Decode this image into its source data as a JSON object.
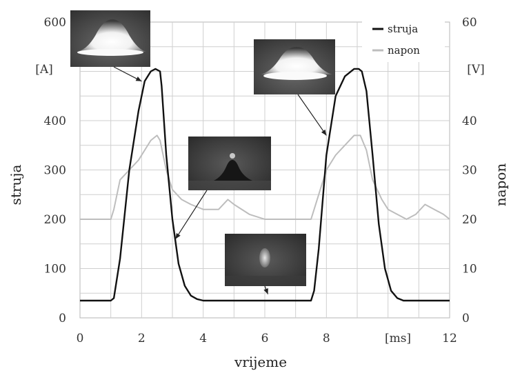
{
  "chart_data": {
    "type": "line",
    "xlabel": "vrijeme",
    "ylabel_left": "struja",
    "ylabel_right": "napon",
    "x_unit_label": "[ms]",
    "left_unit_label": "[A]",
    "right_unit_label": "[V]",
    "x_ticks": [
      0,
      2,
      4,
      6,
      8,
      12
    ],
    "left_ticks": [
      0,
      100,
      200,
      300,
      400,
      600
    ],
    "right_ticks": [
      0,
      10,
      20,
      30,
      40,
      60
    ],
    "xlim": [
      0,
      12
    ],
    "ylim_left": [
      0,
      600
    ],
    "ylim_right": [
      0,
      60
    ],
    "grid": true,
    "legend_position": "top-right",
    "series": [
      {
        "name": "struja",
        "axis": "left",
        "color": "#111111",
        "x": [
          0,
          1.0,
          1.1,
          1.3,
          1.6,
          1.9,
          2.1,
          2.3,
          2.45,
          2.6,
          2.65,
          2.8,
          3.0,
          3.2,
          3.4,
          3.6,
          3.8,
          4.0,
          5.0,
          6.0,
          7.0,
          7.5,
          7.6,
          7.75,
          8.0,
          8.3,
          8.6,
          8.9,
          9.05,
          9.15,
          9.3,
          9.5,
          9.7,
          9.9,
          10.1,
          10.3,
          10.5,
          11.0,
          12.0
        ],
        "values": [
          35,
          35,
          40,
          120,
          300,
          420,
          480,
          500,
          505,
          500,
          470,
          330,
          200,
          110,
          65,
          45,
          38,
          35,
          35,
          35,
          35,
          35,
          55,
          140,
          330,
          450,
          490,
          505,
          505,
          500,
          460,
          330,
          190,
          100,
          55,
          40,
          35,
          35,
          35
        ]
      },
      {
        "name": "napon",
        "axis": "right",
        "color": "#bdbdbd",
        "x": [
          0,
          0.5,
          1.0,
          1.1,
          1.3,
          1.6,
          1.9,
          2.1,
          2.3,
          2.5,
          2.6,
          2.8,
          3.0,
          3.3,
          3.6,
          4.0,
          4.5,
          4.8,
          5.0,
          5.5,
          6.0,
          6.5,
          7.0,
          7.5,
          7.6,
          7.8,
          8.0,
          8.3,
          8.6,
          8.9,
          9.1,
          9.3,
          9.5,
          9.8,
          10.0,
          10.3,
          10.6,
          10.9,
          11.2,
          11.5,
          11.8,
          12.0
        ],
        "values": [
          20,
          20,
          20,
          22,
          28,
          30,
          32,
          34,
          36,
          37,
          36,
          30,
          26,
          24,
          23,
          22,
          22,
          24,
          23,
          21,
          20,
          20,
          20,
          20,
          22,
          26,
          30,
          33,
          35,
          37,
          37,
          34,
          28,
          24,
          22,
          21,
          20,
          21,
          23,
          22,
          21,
          20
        ]
      }
    ]
  },
  "insets": [
    {
      "name": "inset-bright-cone-large-1",
      "attached_to": "struja",
      "at_x": 2.0,
      "at_y": 480
    },
    {
      "name": "inset-bright-cone-large-2",
      "attached_to": "struja",
      "at_x": 8.0,
      "at_y": 370
    },
    {
      "name": "inset-dark-small-droplet",
      "attached_to": "struja",
      "at_x": 3.1,
      "at_y": 160
    },
    {
      "name": "inset-faint-small-droplet",
      "attached_to": "struja",
      "at_x": 6.1,
      "at_y": 48
    }
  ]
}
